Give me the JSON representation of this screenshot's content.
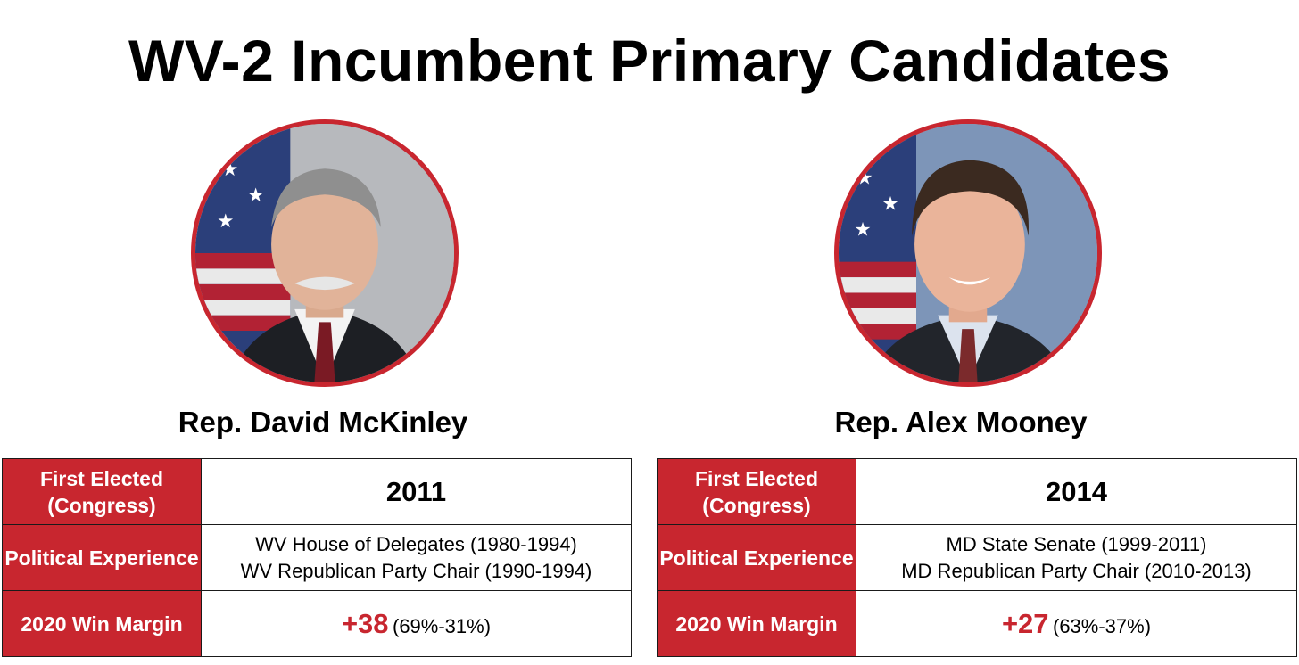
{
  "title": "WV-2 Incumbent Primary Candidates",
  "colors": {
    "accent": "#c8262f",
    "label_text": "#ffffff"
  },
  "candidates": [
    {
      "name": "Rep. David McKinley",
      "rows": {
        "first_elected_label": "First Elected (Congress)",
        "first_elected_value": "2011",
        "experience_label": "Political Experience",
        "experience_values": [
          "WV House of Delegates (1980-1994)",
          "WV Republican Party Chair (1990-1994)"
        ],
        "margin_label": "2020 Win Margin",
        "margin_value": "+38",
        "margin_detail": "(69%-31%)"
      }
    },
    {
      "name": "Rep. Alex Mooney",
      "rows": {
        "first_elected_label": "First Elected (Congress)",
        "first_elected_value": "2014",
        "experience_label": "Political Experience",
        "experience_values": [
          "MD State Senate (1999-2011)",
          "MD Republican Party Chair (2010-2013)"
        ],
        "margin_label": "2020 Win Margin",
        "margin_value": "+27",
        "margin_detail": "(63%-37%)"
      }
    }
  ]
}
